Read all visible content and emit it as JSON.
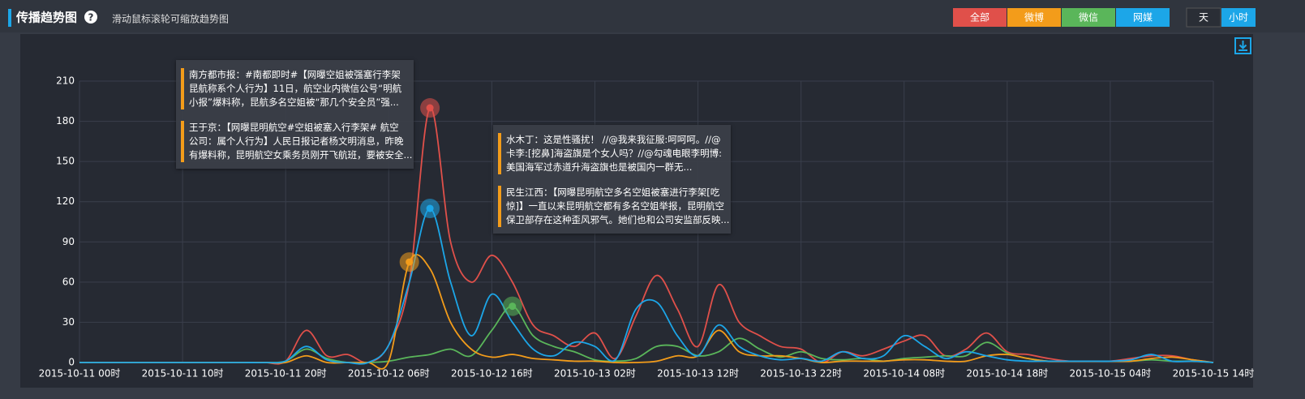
{
  "header": {
    "title": "传播趋势图",
    "help": "?",
    "subtitle": "滑动鼠标滚轮可缩放趋势图"
  },
  "granularity": [
    "天",
    "小时"
  ],
  "chart_data": {
    "type": "line",
    "x": [
      0,
      2,
      4,
      6,
      8,
      10,
      12,
      14,
      16,
      18,
      20,
      22,
      24,
      26,
      28,
      30,
      32,
      34,
      36,
      38,
      40,
      42,
      44,
      46,
      48,
      50,
      52,
      54,
      56,
      58,
      60,
      62,
      64,
      66,
      68,
      70,
      72,
      74,
      76,
      78,
      80,
      82,
      84,
      86,
      88,
      90,
      92,
      94,
      96,
      98,
      100,
      102,
      104,
      106,
      108,
      110
    ],
    "xlim": [
      0,
      110
    ],
    "xticks": [
      {
        "value": 0,
        "label": "2015-10-11 00时"
      },
      {
        "value": 10,
        "label": "2015-10-11 10时"
      },
      {
        "value": 20,
        "label": "2015-10-11 20时"
      },
      {
        "value": 30,
        "label": "2015-10-12 06时"
      },
      {
        "value": 40,
        "label": "2015-10-12 16时"
      },
      {
        "value": 50,
        "label": "2015-10-13 02时"
      },
      {
        "value": 60,
        "label": "2015-10-13 12时"
      },
      {
        "value": 70,
        "label": "2015-10-13 22时"
      },
      {
        "value": 80,
        "label": "2015-10-14 08时"
      },
      {
        "value": 90,
        "label": "2015-10-14 18时"
      },
      {
        "value": 100,
        "label": "2015-10-15 04时"
      },
      {
        "value": 110,
        "label": "2015-10-15 14时"
      }
    ],
    "ylim": [
      0,
      210
    ],
    "yticks": [
      0,
      30,
      60,
      90,
      120,
      150,
      180,
      210
    ],
    "grid": true,
    "series": [
      {
        "name": "全部",
        "color": "#e0504a",
        "values": [
          0,
          0,
          0,
          0,
          0,
          0,
          0,
          0,
          0,
          0,
          1,
          24,
          5,
          6,
          0,
          13,
          60,
          190,
          90,
          60,
          80,
          60,
          28,
          20,
          12,
          22,
          3,
          35,
          65,
          40,
          12,
          58,
          30,
          20,
          12,
          10,
          0,
          8,
          5,
          10,
          16,
          20,
          5,
          10,
          22,
          8,
          6,
          3,
          1,
          1,
          1,
          3,
          5,
          5,
          2,
          0
        ]
      },
      {
        "name": "微博",
        "color": "#f39c1a",
        "values": [
          0,
          0,
          0,
          0,
          0,
          0,
          0,
          0,
          0,
          0,
          0,
          5,
          0,
          0,
          0,
          1,
          75,
          70,
          30,
          10,
          4,
          6,
          3,
          2,
          1,
          1,
          0,
          0,
          1,
          5,
          5,
          24,
          8,
          5,
          5,
          3,
          0,
          1,
          1,
          1,
          2,
          2,
          1,
          1,
          5,
          6,
          3,
          1,
          1,
          1,
          1,
          1,
          3,
          4,
          2,
          0
        ]
      },
      {
        "name": "微信",
        "color": "#5ab65a",
        "values": [
          0,
          0,
          0,
          0,
          0,
          0,
          0,
          0,
          0,
          0,
          1,
          10,
          3,
          0,
          0,
          1,
          4,
          6,
          10,
          5,
          24,
          42,
          20,
          12,
          8,
          2,
          1,
          3,
          12,
          12,
          5,
          8,
          18,
          10,
          4,
          8,
          3,
          2,
          3,
          1,
          3,
          4,
          5,
          5,
          15,
          7,
          3,
          1,
          1,
          1,
          1,
          1,
          2,
          1,
          1,
          0
        ]
      },
      {
        "name": "网媒",
        "color": "#1ca6e8",
        "values": [
          0,
          0,
          0,
          0,
          0,
          0,
          0,
          0,
          0,
          0,
          1,
          12,
          2,
          0,
          0,
          13,
          60,
          115,
          60,
          20,
          51,
          30,
          10,
          5,
          15,
          12,
          2,
          40,
          45,
          20,
          5,
          28,
          12,
          5,
          2,
          3,
          1,
          8,
          3,
          5,
          20,
          12,
          3,
          8,
          5,
          2,
          1,
          1,
          1,
          1,
          1,
          2,
          6,
          1,
          1,
          0
        ]
      }
    ],
    "annotations": [
      {
        "items": [
          [
            "南方都市报：#南都即时#【网曝空姐被强塞行李架",
            "昆航称系个人行为】11日，航空业内微信公号“明航",
            "小报”爆料称，昆航多名空姐被“那几个安全员”强..."
          ],
          [
            "王于京：【网曝昆明航空#空姐被塞入行李架# 航空",
            "公司：属个人行为】人民日报记者杨文明消息，昨晚",
            "有爆料称，昆明航空女乘务员刚开飞航班，要被安全..."
          ]
        ]
      },
      {
        "items": [
          [
            "水木丁：这是性骚扰！ //@我来我征服:呵呵呵。//@",
            "卡李:[挖鼻]海盗旗是个女人吗？//@勾魂电眼李明博:",
            "美国海军过赤道升海盗旗也是被国内一群无..."
          ],
          [
            "民生江西：【网曝昆明航空多名空姐被塞进行李架[吃",
            "惊]】一直以来昆明航空都有多名空姐举报，昆明航空",
            "保卫部存在这种歪风邪气。她们也和公司安监部反映..."
          ]
        ]
      }
    ]
  }
}
